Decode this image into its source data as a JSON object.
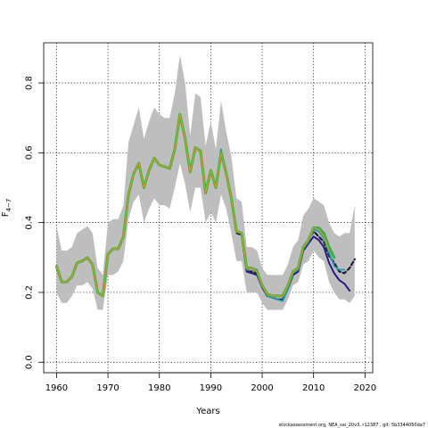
{
  "chart_data": {
    "type": "line",
    "xlabel": "Years",
    "ylabel": "F",
    "ylabel_sub": "4−7",
    "xlim": [
      1957.5,
      2021.5
    ],
    "ylim": [
      -0.03,
      0.915
    ],
    "x_ticks": [
      1960,
      1970,
      1980,
      1990,
      2000,
      2010,
      2020
    ],
    "y_ticks": [
      0.0,
      0.2,
      0.4,
      0.6,
      0.8
    ],
    "grid": true,
    "footer": "stockassessment.org, NEA_sai_20v3, r12387 , git: 5b3344050da7",
    "band": {
      "color": "#bebebe",
      "years": [
        1960,
        1961,
        1962,
        1963,
        1964,
        1965,
        1966,
        1967,
        1968,
        1969,
        1970,
        1971,
        1972,
        1973,
        1974,
        1975,
        1976,
        1977,
        1978,
        1979,
        1980,
        1981,
        1982,
        1983,
        1984,
        1985,
        1986,
        1987,
        1988,
        1989,
        1990,
        1991,
        1992,
        1993,
        1994,
        1995,
        1996,
        1997,
        1998,
        1999,
        2000,
        2001,
        2002,
        2003,
        2004,
        2005,
        2006,
        2007,
        2008,
        2009,
        2010,
        2011,
        2012,
        2013,
        2014,
        2015,
        2016,
        2017,
        2018
      ],
      "upper": [
        0.39,
        0.32,
        0.32,
        0.33,
        0.37,
        0.38,
        0.39,
        0.37,
        0.27,
        0.25,
        0.4,
        0.41,
        0.41,
        0.45,
        0.63,
        0.68,
        0.73,
        0.64,
        0.69,
        0.73,
        0.71,
        0.7,
        0.7,
        0.77,
        0.88,
        0.8,
        0.65,
        0.77,
        0.76,
        0.62,
        0.69,
        0.61,
        0.75,
        0.66,
        0.59,
        0.47,
        0.46,
        0.33,
        0.33,
        0.32,
        0.27,
        0.25,
        0.25,
        0.25,
        0.25,
        0.28,
        0.33,
        0.35,
        0.42,
        0.44,
        0.47,
        0.46,
        0.45,
        0.4,
        0.37,
        0.36,
        0.37,
        0.37,
        0.45
      ],
      "lower": [
        0.2,
        0.17,
        0.17,
        0.19,
        0.22,
        0.22,
        0.23,
        0.21,
        0.15,
        0.15,
        0.25,
        0.25,
        0.26,
        0.29,
        0.41,
        0.46,
        0.48,
        0.4,
        0.44,
        0.47,
        0.45,
        0.45,
        0.44,
        0.5,
        0.57,
        0.51,
        0.43,
        0.5,
        0.5,
        0.4,
        0.43,
        0.4,
        0.48,
        0.44,
        0.37,
        0.29,
        0.29,
        0.2,
        0.2,
        0.2,
        0.17,
        0.15,
        0.15,
        0.15,
        0.15,
        0.18,
        0.22,
        0.23,
        0.28,
        0.29,
        0.32,
        0.3,
        0.29,
        0.23,
        0.2,
        0.18,
        0.18,
        0.17,
        0.19
      ]
    },
    "series": [
      {
        "color": "#22193f",
        "years": [
          1960,
          1961,
          1962,
          1963,
          1964,
          1965,
          1966,
          1967,
          1968,
          1969,
          1970,
          1971,
          1972,
          1973,
          1974,
          1975,
          1976,
          1977,
          1978,
          1979,
          1980,
          1981,
          1982,
          1983,
          1984,
          1985,
          1986,
          1987,
          1988,
          1989,
          1990,
          1991,
          1992,
          1993,
          1994,
          1995,
          1996,
          1997,
          1998,
          1999,
          2000,
          2001,
          2002,
          2003,
          2004,
          2005,
          2006,
          2007,
          2008,
          2009,
          2010,
          2011,
          2012,
          2013,
          2014,
          2015,
          2016,
          2017,
          2018
        ],
        "values": [
          0.275,
          0.23,
          0.23,
          0.245,
          0.285,
          0.29,
          0.3,
          0.28,
          0.2,
          0.19,
          0.31,
          0.325,
          0.325,
          0.36,
          0.48,
          0.54,
          0.57,
          0.5,
          0.55,
          0.585,
          0.565,
          0.56,
          0.555,
          0.61,
          0.71,
          0.64,
          0.545,
          0.615,
          0.605,
          0.485,
          0.55,
          0.5,
          0.605,
          0.54,
          0.47,
          0.37,
          0.365,
          0.26,
          0.26,
          0.255,
          0.215,
          0.19,
          0.19,
          0.19,
          0.19,
          0.22,
          0.26,
          0.27,
          0.33,
          0.35,
          0.375,
          0.36,
          0.345,
          0.305,
          0.285,
          0.26,
          0.255,
          0.27,
          0.295
        ],
        "dash": "4 3",
        "width": 2.2
      },
      {
        "color": "#2b1a85",
        "years": [
          1996,
          1997,
          1998,
          1999,
          2000,
          2001,
          2002,
          2003,
          2004,
          2005,
          2006,
          2007,
          2008,
          2009,
          2010,
          2011,
          2012,
          2013,
          2014,
          2015,
          2016,
          2017
        ],
        "values": [
          0.37,
          0.26,
          0.255,
          0.25,
          0.215,
          0.19,
          0.185,
          0.18,
          0.18,
          0.21,
          0.25,
          0.26,
          0.32,
          0.34,
          0.36,
          0.35,
          0.33,
          0.285,
          0.255,
          0.235,
          0.225,
          0.205
        ],
        "width": 2.0
      },
      {
        "color": "#1f9ea8",
        "years": [
          1990,
          1991,
          1992,
          1993,
          1994,
          1995,
          1996,
          1997,
          1998,
          1999,
          2000,
          2001,
          2002,
          2003,
          2004,
          2005,
          2006,
          2007,
          2008,
          2009,
          2010,
          2011,
          2012,
          2013,
          2014,
          2015,
          2016
        ],
        "values": [
          0.55,
          0.5,
          0.61,
          0.545,
          0.475,
          0.375,
          0.37,
          0.265,
          0.27,
          0.265,
          0.22,
          0.19,
          0.185,
          0.18,
          0.175,
          0.21,
          0.255,
          0.265,
          0.325,
          0.345,
          0.38,
          0.375,
          0.355,
          0.315,
          0.275,
          0.265,
          0.265
        ],
        "width": 1.8
      },
      {
        "color": "#3eab45",
        "years": [
          1960,
          1961,
          1962,
          1963,
          1964,
          1965,
          1966,
          1967,
          1968,
          1969,
          1970,
          1971,
          1972,
          1973,
          1974,
          1975,
          1976,
          1977,
          1978,
          1979,
          1980,
          1981,
          1982,
          1983,
          1984,
          1985,
          1986,
          1987,
          1988,
          1989,
          1990,
          1991,
          1992,
          1993,
          1994,
          1995,
          1996,
          1997,
          1998,
          1999,
          2000,
          2001,
          2002,
          2003,
          2004,
          2005,
          2006,
          2007,
          2008,
          2009,
          2010,
          2011,
          2012,
          2013,
          2014
        ],
        "values": [
          0.275,
          0.23,
          0.23,
          0.245,
          0.285,
          0.29,
          0.3,
          0.28,
          0.2,
          0.19,
          0.31,
          0.325,
          0.325,
          0.36,
          0.48,
          0.54,
          0.57,
          0.5,
          0.55,
          0.585,
          0.565,
          0.56,
          0.555,
          0.61,
          0.71,
          0.64,
          0.545,
          0.615,
          0.605,
          0.485,
          0.55,
          0.5,
          0.6,
          0.54,
          0.47,
          0.375,
          0.37,
          0.27,
          0.27,
          0.26,
          0.22,
          0.195,
          0.19,
          0.19,
          0.19,
          0.22,
          0.26,
          0.27,
          0.33,
          0.35,
          0.385,
          0.385,
          0.37,
          0.33,
          0.3
        ],
        "width": 3.0
      },
      {
        "color": "#b8a42a",
        "years": [
          1960,
          1961,
          1962,
          1963,
          1964,
          1965,
          1966,
          1967,
          1968,
          1969,
          1970,
          1971,
          1972,
          1973,
          1974,
          1975,
          1976,
          1977,
          1978,
          1979,
          1980,
          1981,
          1982,
          1983,
          1984,
          1985,
          1986,
          1987,
          1988,
          1989,
          1990,
          1991,
          1992,
          1993,
          1994,
          1995,
          1996,
          1997,
          1998,
          1999,
          2000,
          2001,
          2002,
          2003,
          2004,
          2005,
          2006,
          2007,
          2008,
          2009,
          2010,
          2011,
          2012,
          2013
        ],
        "values": [
          0.275,
          0.23,
          0.23,
          0.245,
          0.285,
          0.29,
          0.3,
          0.28,
          0.2,
          0.19,
          0.31,
          0.325,
          0.325,
          0.36,
          0.48,
          0.54,
          0.57,
          0.5,
          0.55,
          0.585,
          0.565,
          0.56,
          0.555,
          0.61,
          0.71,
          0.64,
          0.545,
          0.615,
          0.605,
          0.485,
          0.55,
          0.5,
          0.6,
          0.54,
          0.47,
          0.375,
          0.37,
          0.27,
          0.27,
          0.26,
          0.22,
          0.195,
          0.19,
          0.19,
          0.19,
          0.22,
          0.26,
          0.27,
          0.33,
          0.35,
          0.385,
          0.38,
          0.36,
          0.32
        ],
        "width": 1.4
      }
    ]
  }
}
